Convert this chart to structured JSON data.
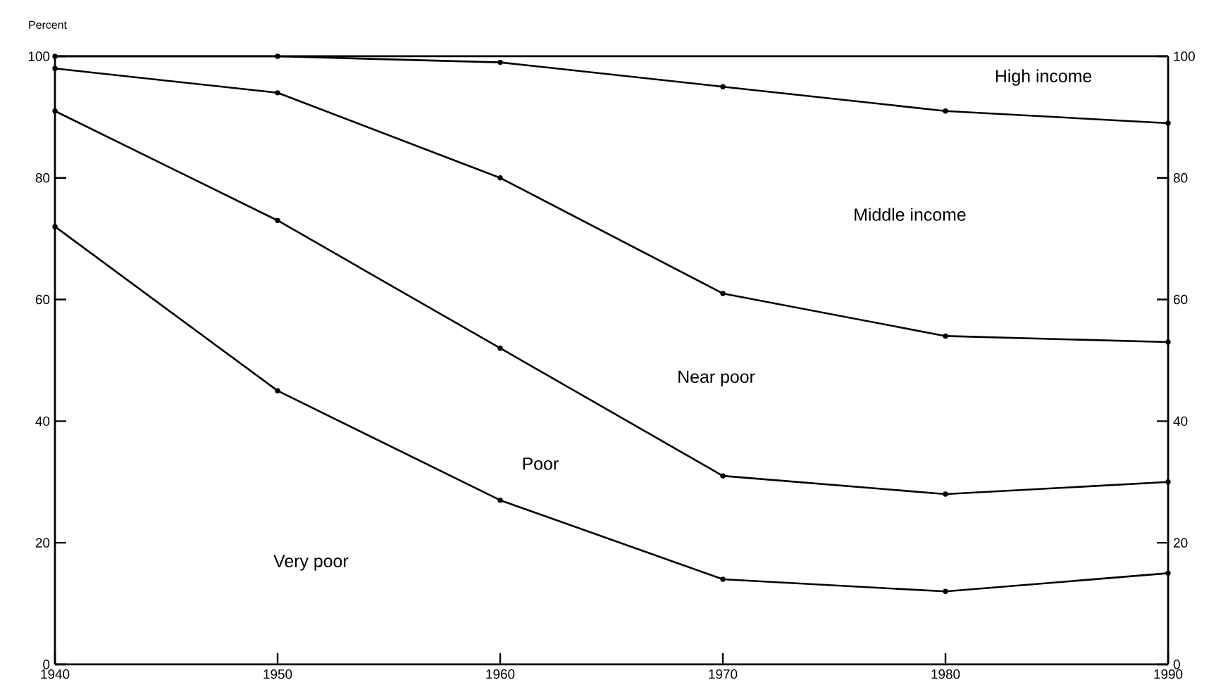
{
  "chart_data": {
    "type": "line",
    "ylabel": "Percent",
    "x": [
      1940,
      1950,
      1960,
      1970,
      1980,
      1990
    ],
    "series": [
      {
        "color": "#000000",
        "values": [
          72,
          45,
          27,
          14,
          12,
          15
        ]
      },
      {
        "color": "#000000",
        "values": [
          91,
          73,
          52,
          31,
          28,
          30
        ]
      },
      {
        "color": "#000000",
        "values": [
          98,
          94,
          80,
          61,
          54,
          53
        ]
      },
      {
        "color": "#000000",
        "values": [
          100,
          100,
          99,
          95,
          91,
          89
        ]
      }
    ],
    "xlim": [
      1940,
      1990
    ],
    "xticks": [
      1940,
      1950,
      1960,
      1970,
      1980,
      1990
    ],
    "ylim": [
      0,
      100
    ],
    "yticks": [
      0,
      20,
      40,
      60,
      80,
      100
    ],
    "y2lim": [
      0,
      100
    ],
    "y2ticks": [
      0,
      20,
      40,
      60,
      80,
      100
    ],
    "marker": "circle",
    "line_style": "solid",
    "annotations": [
      "Very poor",
      "Poor",
      "Near poor",
      "Middle income",
      "High income"
    ]
  }
}
